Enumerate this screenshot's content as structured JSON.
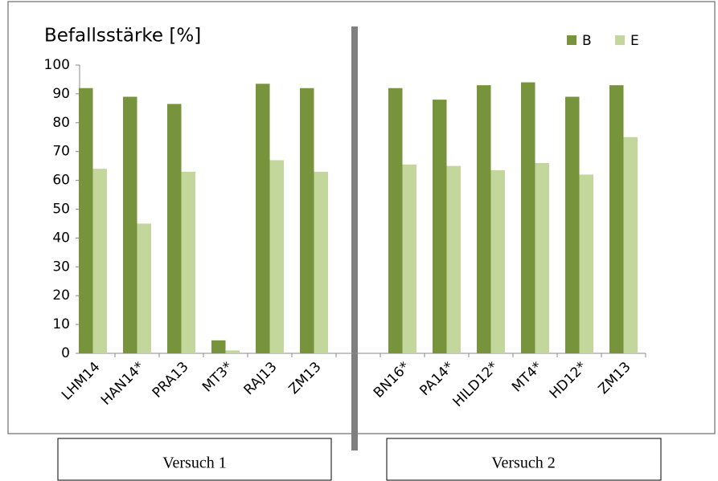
{
  "chart_data": {
    "type": "bar",
    "title": "Befallsstärke [%]",
    "categories": [
      "LHM14",
      "HAN14*",
      "PRA13",
      "MT3*",
      "RAJ13",
      "ZM13",
      null,
      "BN16*",
      "PA14*",
      "HILD12*",
      "MT4*",
      "HD12*",
      "ZM13"
    ],
    "series": [
      {
        "name": "B",
        "color": "#77933c",
        "values": [
          92,
          89,
          86.5,
          4.5,
          93.5,
          92,
          null,
          92,
          88,
          93,
          94,
          89,
          93
        ]
      },
      {
        "name": "E",
        "color": "#c3d69b",
        "values": [
          64,
          45,
          63,
          1,
          67,
          63,
          null,
          65.5,
          65,
          63.5,
          66,
          62,
          75
        ]
      }
    ],
    "ylim": [
      0,
      100
    ],
    "yticks": [
      0,
      10,
      20,
      30,
      40,
      50,
      60,
      70,
      80,
      90,
      100
    ],
    "grid": false,
    "legend": "top-right",
    "groups": [
      "Versuch 1",
      "Versuch 2"
    ]
  }
}
